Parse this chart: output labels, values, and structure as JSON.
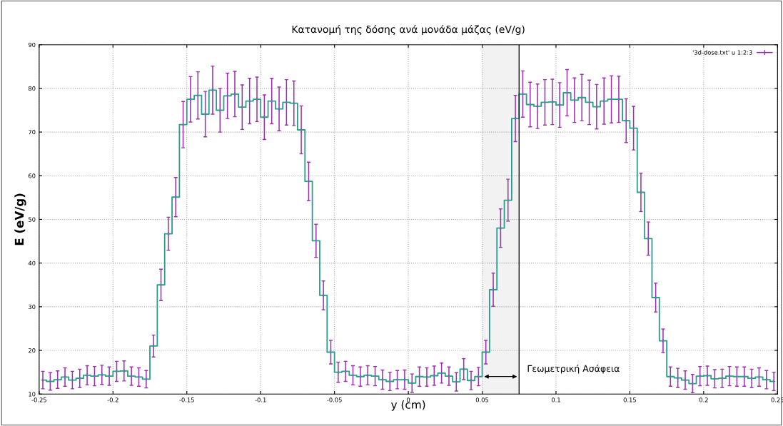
{
  "chart_data": {
    "type": "step",
    "title": "Κατανομή της δόσης ανά μονάδα μάζας (eV/g)",
    "xlabel": "y (cm)",
    "ylabel": "E (eV/g)",
    "x": [
      -0.2475,
      -0.2425,
      -0.2375,
      -0.2325,
      -0.2275,
      -0.2225,
      -0.2175,
      -0.2125,
      -0.2075,
      -0.2025,
      -0.1975,
      -0.1925,
      -0.1875,
      -0.1825,
      -0.1775,
      -0.1725,
      -0.1675,
      -0.1625,
      -0.1575,
      -0.1525,
      -0.1475,
      -0.1425,
      -0.1375,
      -0.1325,
      -0.1275,
      -0.1225,
      -0.1175,
      -0.1125,
      -0.1075,
      -0.1025,
      -0.0975,
      -0.0925,
      -0.0875,
      -0.0825,
      -0.0775,
      -0.0725,
      -0.0675,
      -0.0625,
      -0.0575,
      -0.0525,
      -0.0475,
      -0.0425,
      -0.0375,
      -0.0325,
      -0.0275,
      -0.0225,
      -0.0175,
      -0.0125,
      -0.0075,
      -0.0025,
      0.0025,
      0.0075,
      0.0125,
      0.0175,
      0.0225,
      0.0275,
      0.0325,
      0.0375,
      0.0425,
      0.0475,
      0.0525,
      0.0575,
      0.0625,
      0.0675,
      0.0725,
      0.0775,
      0.0825,
      0.0875,
      0.0925,
      0.0975,
      0.1025,
      0.1075,
      0.1125,
      0.1175,
      0.1225,
      0.1275,
      0.1325,
      0.1375,
      0.1425,
      0.1475,
      0.1525,
      0.1575,
      0.1625,
      0.1675,
      0.1725,
      0.1775,
      0.1825,
      0.1875,
      0.1925,
      0.1975,
      0.2025,
      0.2075,
      0.2125,
      0.2175,
      0.2225,
      0.2275,
      0.2325,
      0.2375,
      0.2425,
      0.2475
    ],
    "series": [
      {
        "color": "#2a9d8f",
        "values": [
          13.2,
          12.9,
          13.3,
          13.9,
          13.2,
          13.6,
          14.3,
          14.1,
          14.4,
          14.1,
          15.2,
          15.3,
          14.1,
          13.9,
          13.4,
          21.0,
          35.0,
          46.7,
          55.1,
          71.7,
          77.5,
          78.4,
          74.1,
          79.6,
          75.0,
          78.3,
          78.7,
          75.7,
          77.1,
          77.5,
          73.4,
          77.1,
          75.3,
          76.8,
          76.6,
          70.5,
          58.7,
          45.1,
          32.6,
          19.6,
          15.0,
          15.2,
          14.3,
          14.0,
          14.3,
          14.1,
          13.3,
          12.9,
          13.3,
          13.3,
          12.5,
          14.0,
          13.9,
          14.2,
          14.8,
          14.1,
          12.8,
          15.7,
          13.1,
          14.0,
          19.6,
          33.9,
          48.0,
          54.4,
          73.1,
          78.7,
          76.3,
          75.9,
          76.8,
          76.9,
          76.2,
          79.0,
          77.3,
          77.9,
          76.8,
          75.8,
          77.1,
          77.5,
          77.5,
          72.6,
          70.9,
          56.2,
          45.6,
          32.1,
          22.2,
          14.0,
          13.7,
          13.2,
          12.4,
          14.1,
          14.2,
          13.5,
          13.6,
          14.1,
          14.0,
          14.0,
          13.6,
          13.9,
          13.3,
          12.9
        ]
      },
      {
        "type": "scatter",
        "marker": "cross",
        "name": "'3d-dose.txt' u 1:2:3",
        "color": "#9b2fae",
        "values": [
          13.2,
          12.9,
          13.3,
          13.9,
          13.2,
          13.6,
          14.3,
          14.1,
          14.4,
          14.1,
          15.2,
          15.3,
          14.1,
          13.9,
          13.4,
          21.0,
          35.0,
          46.7,
          55.1,
          71.7,
          77.5,
          78.4,
          74.1,
          79.6,
          75.0,
          78.3,
          78.7,
          75.7,
          77.1,
          77.5,
          73.4,
          77.1,
          75.3,
          76.8,
          76.6,
          70.5,
          58.7,
          45.1,
          32.6,
          19.6,
          15.0,
          15.2,
          14.3,
          14.0,
          14.3,
          14.1,
          13.3,
          12.9,
          13.3,
          13.3,
          12.5,
          14.0,
          13.9,
          14.2,
          14.8,
          14.1,
          12.8,
          15.7,
          13.1,
          14.0,
          19.6,
          33.9,
          48.0,
          54.4,
          73.1,
          78.7,
          76.3,
          75.9,
          76.8,
          76.9,
          76.2,
          79.0,
          77.3,
          77.9,
          76.8,
          75.8,
          77.1,
          77.5,
          77.5,
          72.6,
          70.9,
          56.2,
          45.6,
          32.1,
          22.2,
          14.0,
          13.7,
          13.2,
          12.4,
          14.1,
          14.2,
          13.5,
          13.6,
          14.1,
          14.0,
          14.0,
          13.6,
          13.9,
          13.3,
          12.9
        ],
        "errors": [
          2,
          2,
          2,
          2.1,
          2,
          2.1,
          2.2,
          2.2,
          2.2,
          2.1,
          2.3,
          2.3,
          2.1,
          2.1,
          2,
          2.5,
          3.6,
          3.8,
          4.5,
          5.3,
          5.2,
          5.4,
          5.2,
          5.5,
          5.0,
          5.2,
          5.2,
          5.1,
          5.2,
          5.1,
          5.1,
          5.2,
          5.0,
          5.2,
          5.1,
          5.5,
          4.4,
          3.8,
          3.3,
          2.7,
          2.3,
          2.3,
          2.2,
          2.2,
          2.2,
          2.2,
          2.2,
          2.1,
          2.1,
          2.2,
          2.1,
          2.2,
          2.1,
          2.2,
          2.3,
          2.1,
          2.1,
          2.4,
          2.1,
          2.1,
          2.7,
          3.8,
          4.4,
          4.8,
          5.3,
          5.3,
          5.1,
          5.1,
          5.2,
          5.2,
          5.1,
          5.3,
          5.1,
          5.3,
          5.1,
          5.1,
          5.3,
          5.4,
          5.3,
          5.0,
          5.0,
          4.4,
          3.8,
          3.3,
          2.7,
          2.2,
          2.2,
          2.1,
          2.1,
          2.2,
          2.2,
          2.1,
          2.1,
          2.2,
          2.2,
          2.2,
          2.1,
          2.1,
          2.1,
          2.1
        ]
      }
    ],
    "xlim": [
      -0.25,
      0.25
    ],
    "xticks": [
      -0.25,
      -0.2,
      -0.15,
      -0.1,
      -0.05,
      0,
      0.05,
      0.1,
      0.15,
      0.2,
      0.25
    ],
    "ylim": [
      10,
      90
    ],
    "yticks": [
      10,
      20,
      30,
      40,
      50,
      60,
      70,
      80,
      90
    ],
    "ref_lines": [
      {
        "axis": "x",
        "value": 0.075,
        "color": "#000000"
      }
    ],
    "bands": [
      {
        "axis": "x",
        "from": 0.05,
        "to": 0.075,
        "label": "Γεωμετρική Ασάφεια",
        "color": "#000000"
      }
    ],
    "grid": true,
    "legend": "top right"
  }
}
